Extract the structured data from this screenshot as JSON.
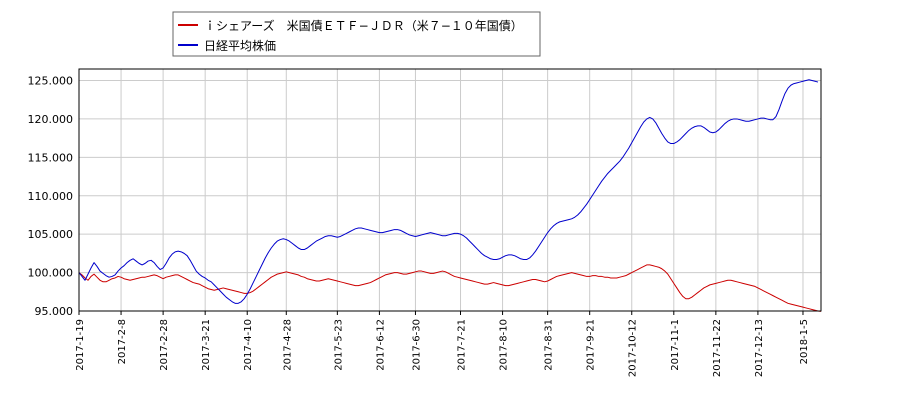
{
  "chart_data": {
    "type": "line",
    "title": "",
    "xlabel": "",
    "ylabel": "",
    "legend_position": "top-left",
    "grid": true,
    "ylim": [
      95,
      126.5
    ],
    "y_ticks": [
      "95.000",
      "100.000",
      "105.000",
      "110.000",
      "115.000",
      "120.000",
      "125.000"
    ],
    "x_ticks": [
      "2017-1-19",
      "2017-2-8",
      "2017-2-28",
      "2017-3-21",
      "2017-4-10",
      "2017-4-28",
      "2017-5-23",
      "2017-6-12",
      "2017-6-30",
      "2017-7-21",
      "2017-8-10",
      "2017-8-31",
      "2017-9-21",
      "2017-10-12",
      "2017-11-1",
      "2017-11-22",
      "2017-12-13",
      "2018-1-5"
    ],
    "x_tick_index": [
      0,
      14,
      28,
      42,
      56,
      69,
      86,
      100,
      112,
      127,
      141,
      156,
      170,
      184,
      198,
      212,
      226,
      241
    ],
    "series": [
      {
        "name": "ｉシェアーズ　米国債ＥＴＦ−ＪＤＲ（米７−１０年国債）",
        "color": "#cc0000",
        "values": [
          100.0,
          99.7,
          99.3,
          99.0,
          99.5,
          99.8,
          99.4,
          99.0,
          98.8,
          98.8,
          99.0,
          99.2,
          99.3,
          99.5,
          99.4,
          99.2,
          99.1,
          99.0,
          99.1,
          99.2,
          99.3,
          99.4,
          99.4,
          99.5,
          99.6,
          99.7,
          99.6,
          99.4,
          99.2,
          99.4,
          99.5,
          99.6,
          99.7,
          99.7,
          99.5,
          99.3,
          99.1,
          98.9,
          98.7,
          98.6,
          98.5,
          98.3,
          98.1,
          97.9,
          97.8,
          97.7,
          97.8,
          97.9,
          98.0,
          97.9,
          97.8,
          97.7,
          97.6,
          97.5,
          97.4,
          97.3,
          97.3,
          97.4,
          97.6,
          97.9,
          98.2,
          98.5,
          98.8,
          99.1,
          99.4,
          99.6,
          99.8,
          99.9,
          100.0,
          100.1,
          100.0,
          99.9,
          99.8,
          99.7,
          99.5,
          99.4,
          99.2,
          99.1,
          99.0,
          98.9,
          98.9,
          99.0,
          99.1,
          99.2,
          99.1,
          99.0,
          98.9,
          98.8,
          98.7,
          98.6,
          98.5,
          98.4,
          98.3,
          98.3,
          98.4,
          98.5,
          98.6,
          98.7,
          98.9,
          99.1,
          99.3,
          99.5,
          99.7,
          99.8,
          99.9,
          100.0,
          100.0,
          99.9,
          99.8,
          99.8,
          99.9,
          100.0,
          100.1,
          100.2,
          100.2,
          100.1,
          100.0,
          99.9,
          99.9,
          100.0,
          100.1,
          100.2,
          100.1,
          99.9,
          99.7,
          99.5,
          99.4,
          99.3,
          99.2,
          99.1,
          99.0,
          98.9,
          98.8,
          98.7,
          98.6,
          98.5,
          98.5,
          98.6,
          98.7,
          98.6,
          98.5,
          98.4,
          98.3,
          98.3,
          98.4,
          98.5,
          98.6,
          98.7,
          98.8,
          98.9,
          99.0,
          99.1,
          99.1,
          99.0,
          98.9,
          98.8,
          98.9,
          99.1,
          99.3,
          99.5,
          99.6,
          99.7,
          99.8,
          99.9,
          100.0,
          99.9,
          99.8,
          99.7,
          99.6,
          99.5,
          99.5,
          99.6,
          99.6,
          99.5,
          99.5,
          99.4,
          99.4,
          99.3,
          99.3,
          99.3,
          99.4,
          99.5,
          99.6,
          99.8,
          100.0,
          100.2,
          100.4,
          100.6,
          100.8,
          101.0,
          101.0,
          100.9,
          100.8,
          100.7,
          100.5,
          100.2,
          99.8,
          99.2,
          98.6,
          98.0,
          97.4,
          96.9,
          96.6,
          96.6,
          96.8,
          97.1,
          97.4,
          97.7,
          98.0,
          98.2,
          98.4,
          98.5,
          98.6,
          98.7,
          98.8,
          98.9,
          99.0,
          99.0,
          98.9,
          98.8,
          98.7,
          98.6,
          98.5,
          98.4,
          98.3,
          98.2,
          98.0,
          97.8,
          97.6,
          97.4,
          97.2,
          97.0,
          96.8,
          96.6,
          96.4,
          96.2,
          96.0,
          95.9,
          95.8,
          95.7,
          95.6,
          95.5,
          95.4,
          95.3,
          95.2,
          95.1,
          95.0,
          94.95
        ]
      },
      {
        "name": "日経平均株価",
        "color": "#0000cc",
        "values": [
          100.0,
          99.5,
          99.0,
          99.8,
          100.6,
          101.3,
          100.8,
          100.2,
          99.9,
          99.6,
          99.4,
          99.5,
          99.7,
          100.2,
          100.6,
          100.9,
          101.3,
          101.6,
          101.8,
          101.5,
          101.2,
          101.0,
          101.2,
          101.5,
          101.6,
          101.3,
          100.8,
          100.4,
          100.6,
          101.2,
          101.9,
          102.4,
          102.7,
          102.8,
          102.7,
          102.5,
          102.2,
          101.6,
          100.9,
          100.2,
          99.8,
          99.5,
          99.3,
          99.0,
          98.8,
          98.4,
          98.0,
          97.6,
          97.2,
          96.8,
          96.5,
          96.2,
          96.0,
          96.0,
          96.2,
          96.6,
          97.2,
          97.9,
          98.7,
          99.5,
          100.3,
          101.1,
          101.9,
          102.6,
          103.2,
          103.7,
          104.1,
          104.3,
          104.4,
          104.3,
          104.1,
          103.8,
          103.5,
          103.2,
          103.0,
          103.0,
          103.2,
          103.5,
          103.8,
          104.1,
          104.3,
          104.5,
          104.7,
          104.8,
          104.8,
          104.7,
          104.6,
          104.7,
          104.9,
          105.1,
          105.3,
          105.5,
          105.7,
          105.8,
          105.8,
          105.7,
          105.6,
          105.5,
          105.4,
          105.3,
          105.2,
          105.2,
          105.3,
          105.4,
          105.5,
          105.6,
          105.6,
          105.5,
          105.3,
          105.1,
          104.9,
          104.8,
          104.7,
          104.8,
          104.9,
          105.0,
          105.1,
          105.2,
          105.1,
          105.0,
          104.9,
          104.8,
          104.8,
          104.9,
          105.0,
          105.1,
          105.1,
          105.0,
          104.8,
          104.5,
          104.1,
          103.7,
          103.3,
          102.9,
          102.5,
          102.2,
          102.0,
          101.8,
          101.7,
          101.7,
          101.8,
          102.0,
          102.2,
          102.3,
          102.3,
          102.2,
          102.0,
          101.8,
          101.7,
          101.7,
          101.9,
          102.3,
          102.8,
          103.4,
          104.0,
          104.6,
          105.2,
          105.7,
          106.1,
          106.4,
          106.6,
          106.7,
          106.8,
          106.9,
          107.0,
          107.2,
          107.5,
          107.9,
          108.4,
          108.9,
          109.5,
          110.1,
          110.7,
          111.3,
          111.9,
          112.4,
          112.9,
          113.3,
          113.7,
          114.1,
          114.5,
          115.0,
          115.6,
          116.2,
          116.9,
          117.6,
          118.3,
          119.0,
          119.6,
          120.0,
          120.2,
          120.0,
          119.5,
          118.8,
          118.1,
          117.5,
          117.0,
          116.8,
          116.8,
          117.0,
          117.3,
          117.7,
          118.1,
          118.5,
          118.8,
          119.0,
          119.1,
          119.1,
          118.9,
          118.6,
          118.3,
          118.2,
          118.3,
          118.6,
          119.0,
          119.4,
          119.7,
          119.9,
          120.0,
          120.0,
          119.9,
          119.8,
          119.7,
          119.7,
          119.8,
          119.9,
          120.0,
          120.1,
          120.1,
          120.0,
          119.9,
          119.9,
          120.3,
          121.2,
          122.3,
          123.3,
          124.0,
          124.4,
          124.6,
          124.7,
          124.8,
          124.9,
          125.0,
          125.1,
          125.0,
          124.9,
          124.8
        ]
      }
    ]
  }
}
